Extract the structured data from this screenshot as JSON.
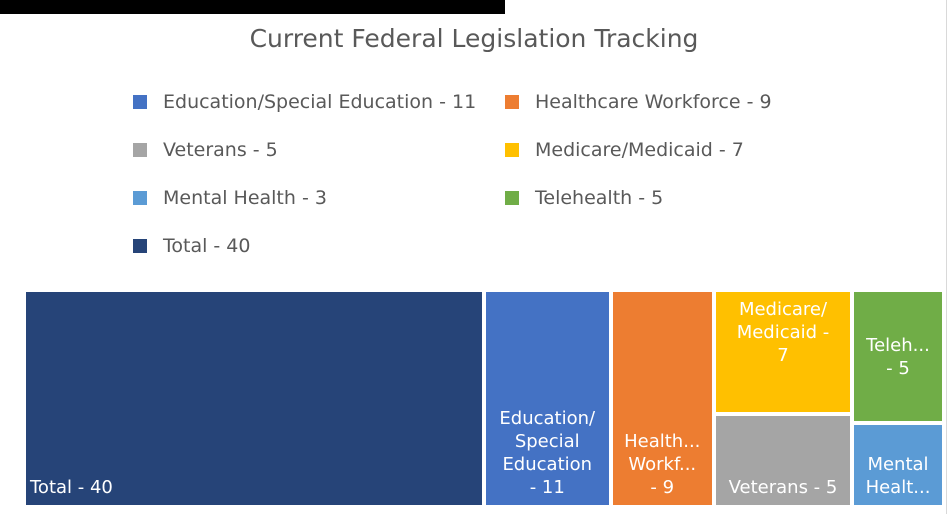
{
  "chart_data": {
    "type": "treemap",
    "title": "Current Federal Legislation Tracking",
    "categories": [
      "Education/Special Education - 11",
      "Healthcare Workforce - 9",
      "Veterans - 5",
      "Medicare/Medicaid - 7",
      "Mental Health - 3",
      "Telehealth - 5",
      "Total - 40"
    ],
    "values": [
      11,
      9,
      5,
      7,
      3,
      5,
      40
    ],
    "tile_labels": [
      "Education/\nSpecial\nEducation\n- 11",
      "Health...\nWorkf...\n- 9",
      "Veterans - 5",
      "Medicare/\nMedicaid -\n7",
      "Mental\nHealt...",
      "Teleh...\n- 5",
      "Total - 40"
    ],
    "colors": [
      "#4472c4",
      "#ed7d31",
      "#a5a5a5",
      "#ffc000",
      "#5b9bd5",
      "#70ad47",
      "#264478"
    ],
    "legend": "top"
  }
}
